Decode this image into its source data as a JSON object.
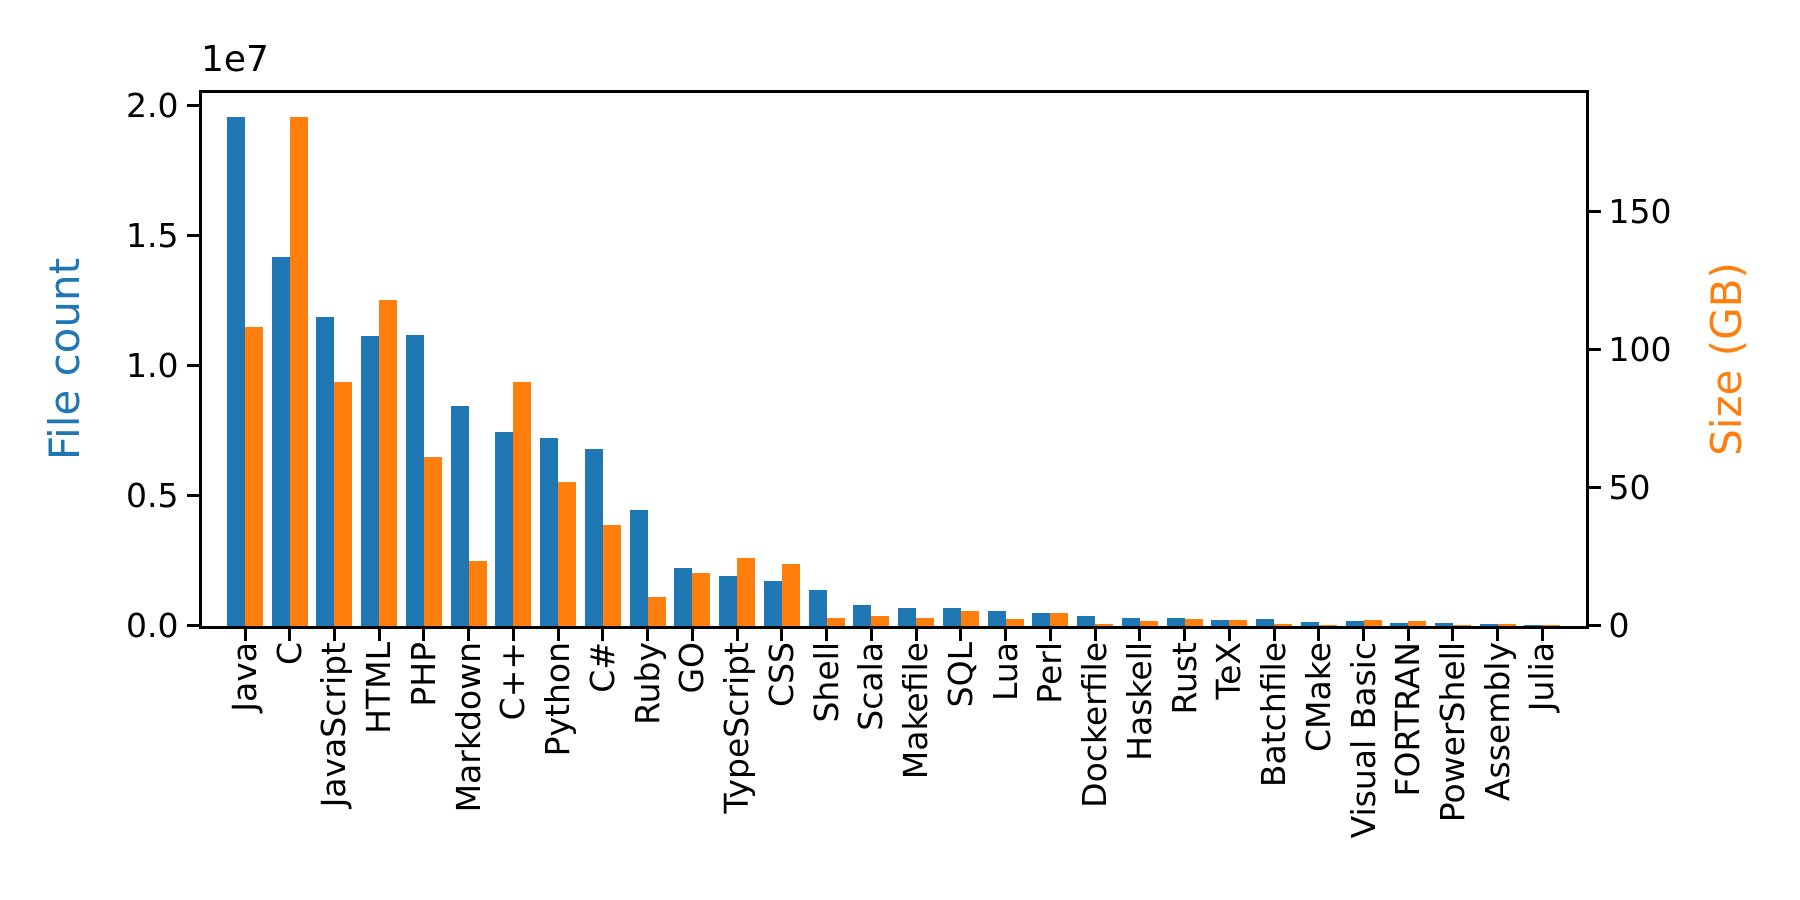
{
  "figure": {
    "background": "#ffffff",
    "frame_color": "#000000"
  },
  "chart_data": {
    "type": "bar",
    "title": "",
    "grid": false,
    "legend": "none",
    "categories": [
      "Java",
      "C",
      "JavaScript",
      "HTML",
      "PHP",
      "Markdown",
      "C++",
      "Python",
      "C#",
      "Ruby",
      "GO",
      "TypeScript",
      "CSS",
      "Shell",
      "Scala",
      "Makefile",
      "SQL",
      "Lua",
      "Perl",
      "Dockerfile",
      "Haskell",
      "Rust",
      "TeX",
      "Batchfile",
      "CMake",
      "Visual Basic",
      "FORTRAN",
      "PowerShell",
      "Assembly",
      "Julia"
    ],
    "series": [
      {
        "name": "File count",
        "axis": "left",
        "color": "#1f77b4",
        "values": [
          19540000,
          14190000,
          11880000,
          11150000,
          11180000,
          8460000,
          7430000,
          7230000,
          6780000,
          4460000,
          2210000,
          1890000,
          1700000,
          1350000,
          770000,
          660000,
          660000,
          550000,
          500000,
          360000,
          280000,
          290000,
          220000,
          240000,
          150000,
          160000,
          100000,
          110000,
          50000,
          30000
        ]
      },
      {
        "name": "Size (GB)",
        "axis": "right",
        "color": "#ff7f0e",
        "values": [
          108,
          184,
          88,
          118,
          61,
          23.5,
          88,
          52,
          36.3,
          10.5,
          19,
          24.3,
          22.4,
          2.9,
          3.4,
          2.6,
          5.4,
          2.3,
          4.7,
          0.6,
          1.7,
          2.5,
          2.1,
          0.4,
          0.3,
          1.9,
          1.7,
          0.3,
          0.4,
          0.2
        ]
      }
    ],
    "left_axis": {
      "label": "File count",
      "color": "#1f77b4",
      "offset_text": "1e7",
      "range": [
        0,
        20500000
      ],
      "ticks": [
        {
          "label": "0.0",
          "value": 0
        },
        {
          "label": "0.5",
          "value": 5000000
        },
        {
          "label": "1.0",
          "value": 10000000
        },
        {
          "label": "1.5",
          "value": 15000000
        },
        {
          "label": "2.0",
          "value": 20000000
        }
      ]
    },
    "right_axis": {
      "label": "Size (GB)",
      "color": "#ff7f0e",
      "range": [
        0,
        193
      ],
      "ticks": [
        {
          "label": "0",
          "value": 0
        },
        {
          "label": "50",
          "value": 50
        },
        {
          "label": "100",
          "value": 100
        },
        {
          "label": "150",
          "value": 150
        }
      ]
    },
    "x_axis": {
      "tick_label_rotation": 90,
      "tick_labels": [
        "Java",
        "C",
        "JavaScript",
        "HTML",
        "PHP",
        "Markdown",
        "C++",
        "Python",
        "C#",
        "Ruby",
        "GO",
        "TypeScript",
        "CSS",
        "Shell",
        "Scala",
        "Makefile",
        "SQL",
        "Lua",
        "Perl",
        "Dockerfile",
        "Haskell",
        "Rust",
        "TeX",
        "Batchfile",
        "CMake",
        "Visual Basic",
        "FORTRAN",
        "PowerShell",
        "Assembly",
        "Julia"
      ]
    }
  }
}
